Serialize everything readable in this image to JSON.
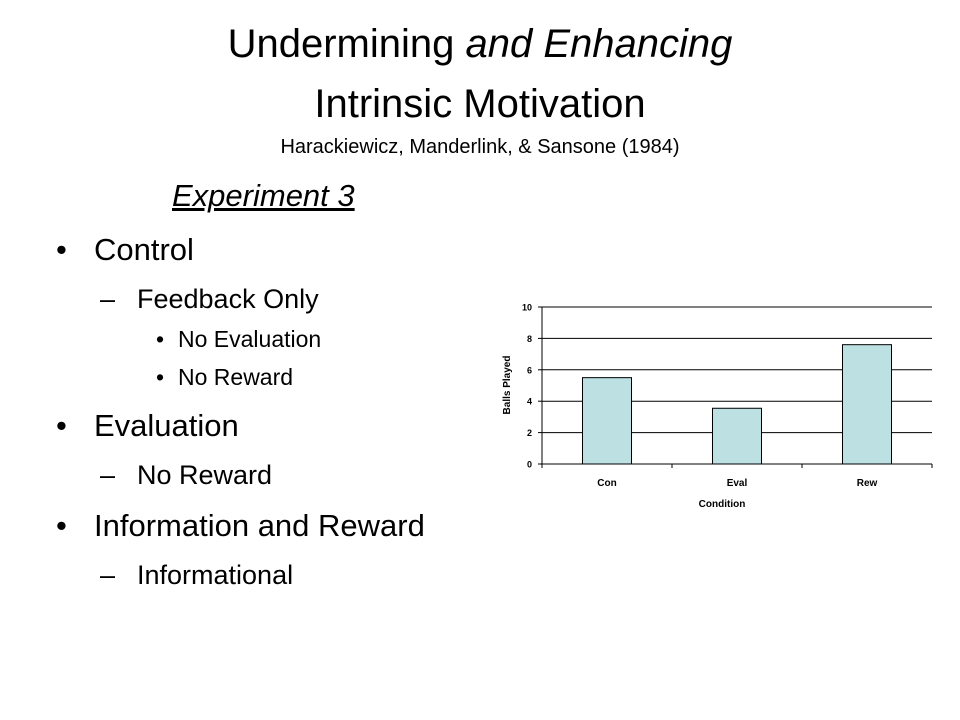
{
  "slide": {
    "title_part1": "Undermining ",
    "title_part2": "and Enhancing",
    "title_line2": "Intrinsic Motivation",
    "citation": "Harackiewicz, Manderlink, & Sansone (1984)",
    "experiment": "Experiment 3",
    "bullets": [
      {
        "text": "Control",
        "children": [
          {
            "text": "Feedback Only",
            "children": [
              {
                "text": "No Evaluation"
              },
              {
                "text": "No Reward"
              }
            ]
          }
        ]
      },
      {
        "text": "Evaluation",
        "children": [
          {
            "text": "No Reward"
          }
        ]
      },
      {
        "text": "Information and Reward",
        "children": [
          {
            "text": "Informational"
          }
        ]
      }
    ],
    "bullet_glyph": "•",
    "dash_glyph": "–"
  },
  "chart_data": {
    "type": "bar",
    "categories": [
      "Con",
      "Eval",
      "Rew"
    ],
    "values": [
      5.5,
      3.55,
      7.6
    ],
    "xlabel": "Condition",
    "ylabel": "Balls Played",
    "ylim": [
      0,
      10
    ],
    "yticks": [
      "0",
      "2",
      "4",
      "6",
      "8",
      "10"
    ],
    "grid": true,
    "bar_color": "#bde0e3",
    "legend": "none"
  }
}
